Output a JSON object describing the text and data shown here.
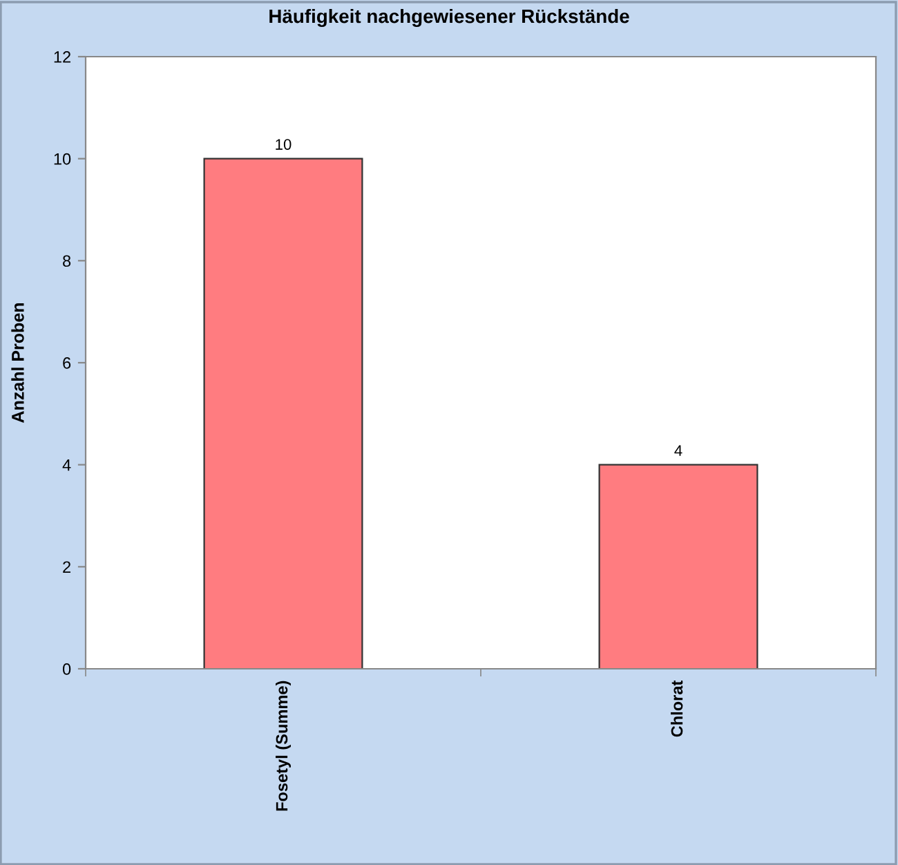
{
  "chart_data": {
    "type": "bar",
    "title": "Häufigkeit nachgewiesener Rückstände",
    "ylabel": "Anzahl Proben",
    "categories": [
      "Fosetyl (Summe)",
      "Chlorat"
    ],
    "values": [
      10,
      4
    ],
    "color": "#ff7c80",
    "ylim": [
      0,
      12
    ],
    "yticks": [
      0,
      2,
      4,
      6,
      8,
      10,
      12
    ],
    "data_labels": true,
    "grid": false,
    "legend": false
  }
}
